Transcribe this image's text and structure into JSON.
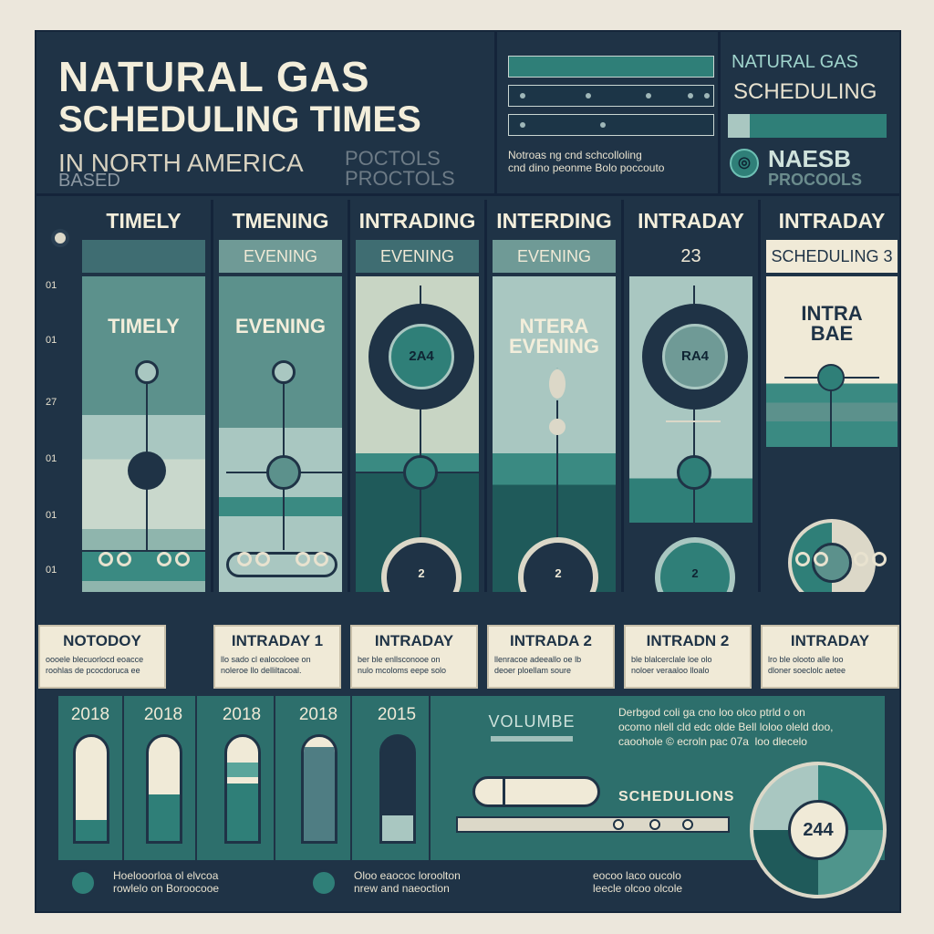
{
  "header": {
    "title_line1": "NATURAL GAS",
    "title_line2": "SCHEDULING TIMES",
    "subtitle_line1": "IN NORTH AMERICA",
    "subtitle_line2": "BASED",
    "protocols_text": "POCTOLS\nPROCTOLS",
    "notes": "Notroas ng cnd schcolloling\ncnd dino peonme Bolo poccouto"
  },
  "badge": {
    "line1": "NATURAL GAS",
    "line2": "SCHEDULING",
    "icon_glyph": "◎",
    "brand": "NAESB",
    "brand_sub": "PROCOOLS"
  },
  "axis": {
    "ticks": [
      "01",
      "01",
      "27",
      "01",
      "01",
      "01"
    ]
  },
  "columns": [
    {
      "head": "TIMELY",
      "band": "",
      "label": "TIMELY",
      "center": "",
      "caption_title": "NOTODOY",
      "caption_text": "oooele blecuorlocd eoacce\nroohlas de pcocdoruca ee"
    },
    {
      "head": "TMENING",
      "band": "EVENING",
      "label": "EVENING",
      "center": "",
      "caption_title": "INTRADAY 1",
      "caption_text": "llo sado cl ealocoloee on\nnoleroe llo delliltacoal."
    },
    {
      "head": "INTRADING",
      "band": "EVENING",
      "label": "",
      "center": "2A4",
      "bottom_num": "2",
      "caption_title": "INTRADAY",
      "caption_text": "ber ble enllsconooe on\nnulo mcoloms eepe solo"
    },
    {
      "head": "INTERDING",
      "band": "EVENING",
      "label": "NTERA\nEVENING",
      "center": "",
      "bottom_num": "2",
      "caption_title": "INTRADA 2",
      "caption_text": "llenracoe adeeallo oe lb\ndeoer ploellam soure"
    },
    {
      "head": "INTRADAY",
      "band": "23",
      "label": "",
      "center": "RA4",
      "bottom_num": "2",
      "caption_title": "INTRADN 2",
      "caption_text": "ble blalcerclale loe olo\nnoloer veraaloo lloalo"
    },
    {
      "head": "INTRADAY",
      "band": "SCHEDULING 3",
      "label": "INTRA\nBAE",
      "center": "",
      "caption_title": "INTRADAY",
      "caption_text": "lro ble olooto alle loo\ndloner soeclolc aetee"
    }
  ],
  "volume_years": [
    {
      "year": "2018",
      "fill": 0.2
    },
    {
      "year": "2018",
      "fill": 0.45
    },
    {
      "year": "2018",
      "fill": 0.55
    },
    {
      "year": "2018",
      "fill": 0.9
    },
    {
      "year": "2015",
      "fill": 0.25
    }
  ],
  "volume": {
    "title": "VOLUMBE"
  },
  "schedule": {
    "text": "Derbgod coli ga cno loo olco ptrld o on\nocomo nlell cld edc olde Bell loloo oleld doo,\ncaoohole © ecroln pac 07a  loo dlecelo",
    "label": "SCHEDULIONS",
    "dial_value": "244"
  },
  "footer": {
    "left": "Hoelooorloa ol elvcoa\nrowlelo on Boroocooe",
    "mid": "Oloo eaococ loroolton\nnrew and naeoction",
    "right": "eocoo laco oucolo\nleecle olcoo olcole"
  }
}
